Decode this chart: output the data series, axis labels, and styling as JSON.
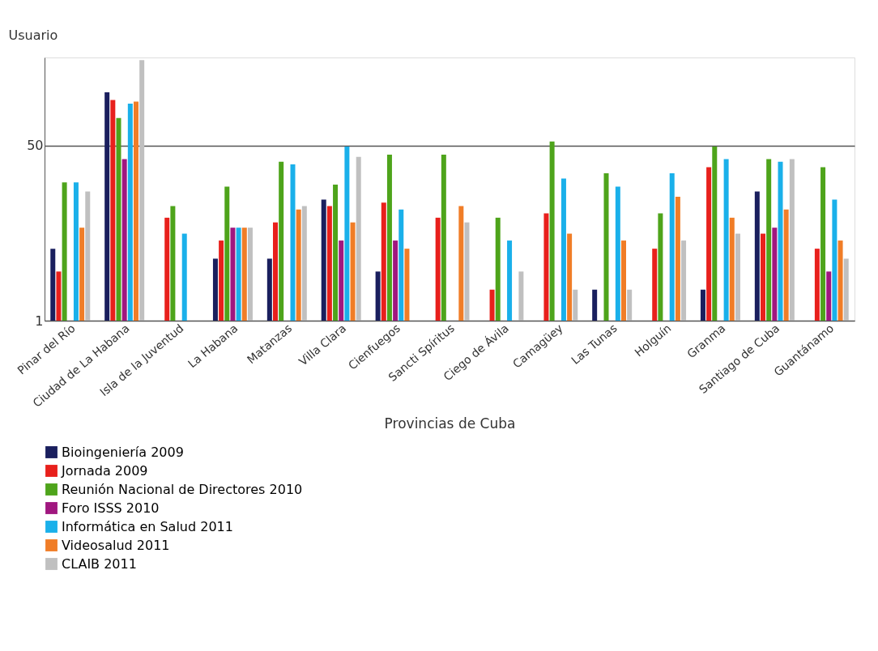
{
  "chart_data": {
    "type": "bar",
    "xlabel": "Provincias de Cuba",
    "ylabel": "Usuario",
    "categories": [
      "Pinar del Río",
      "Ciudad de La Habana",
      "Isla de la Juventud",
      "La Habana",
      "Matanzas",
      "Villa Clara",
      "Cienfuegos",
      "Sancti Spíritus",
      "Ciego de Ávila",
      "Camagüey",
      "Las Tunas",
      "Holguín",
      "Granma",
      "Santiago de Cuba",
      "Guantánamo"
    ],
    "series": [
      {
        "name": "Bioingeniería 2009",
        "color": "#1a1f5e",
        "values": [
          5,
          165,
          null,
          4,
          4,
          15,
          3,
          null,
          null,
          null,
          2,
          null,
          2,
          18,
          null
        ]
      },
      {
        "name": "Jornada 2009",
        "color": "#e8201c",
        "values": [
          3,
          139,
          10,
          6,
          9,
          13,
          14,
          10,
          2,
          11,
          null,
          5,
          31,
          7,
          5
        ]
      },
      {
        "name": "Reunión Nacional de Directores 2010",
        "color": "#4ea41b",
        "values": [
          22,
          93,
          13,
          20,
          35,
          21,
          41,
          41,
          10,
          55,
          27,
          11,
          49,
          37,
          31
        ]
      },
      {
        "name": "Foro ISSS 2010",
        "color": "#a0177f",
        "values": [
          null,
          37,
          null,
          8,
          null,
          6,
          6,
          null,
          null,
          null,
          null,
          null,
          null,
          8,
          3
        ]
      },
      {
        "name": "Informática en Salud 2011",
        "color": "#1ab0ea",
        "values": [
          22,
          128,
          7,
          8,
          33,
          49,
          12,
          null,
          6,
          24,
          20,
          27,
          37,
          35,
          15
        ]
      },
      {
        "name": "Videosalud 2011",
        "color": "#f07d27",
        "values": [
          8,
          134,
          null,
          8,
          12,
          9,
          5,
          13,
          null,
          7,
          6,
          16,
          10,
          12,
          6
        ]
      },
      {
        "name": "CLAIB 2011",
        "color": "#c0c0c0",
        "values": [
          18,
          339,
          null,
          8,
          13,
          39,
          null,
          9,
          3,
          2,
          2,
          6,
          7,
          37,
          4
        ]
      }
    ],
    "log": true,
    "ylim": [
      1,
      360
    ],
    "yticks": [
      1,
      50
    ],
    "grid": "y",
    "legend": "bottom"
  }
}
